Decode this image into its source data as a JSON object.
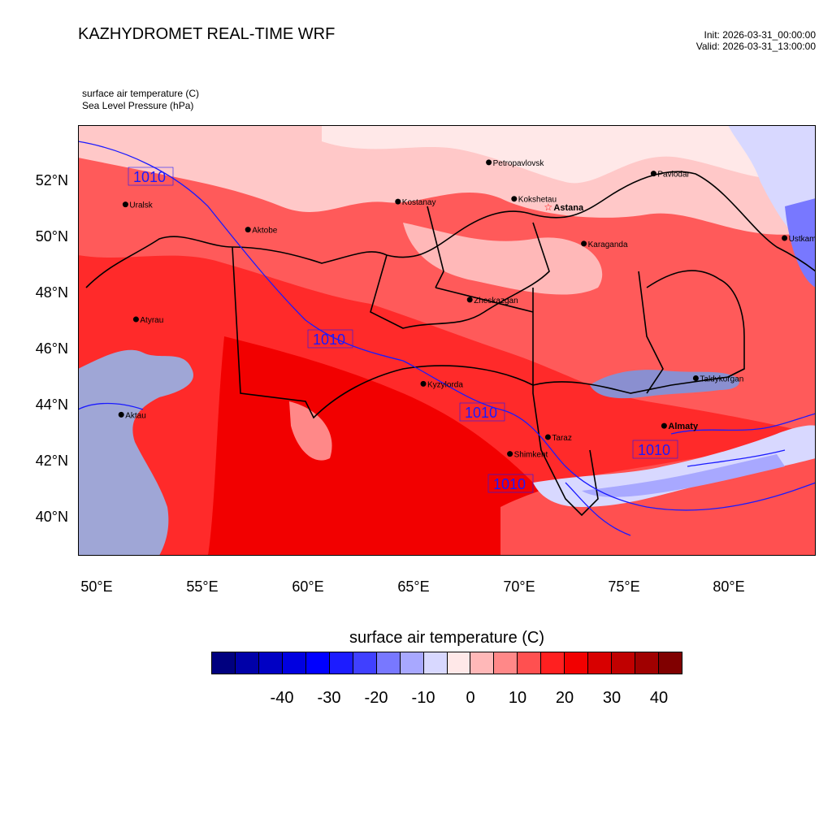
{
  "header": {
    "title": "KAZHYDROMET REAL-TIME WRF",
    "init": "Init: 2026-03-31_00:00:00",
    "valid": "Valid: 2026-03-31_13:00:00"
  },
  "fields": {
    "line1": "surface air temperature   (C)",
    "line2": "Sea Level Pressure   (hPa)"
  },
  "axes": {
    "lat_labels": [
      "52°N",
      "50°N",
      "48°N",
      "46°N",
      "44°N",
      "42°N",
      "40°N"
    ],
    "lon_labels": [
      "50°E",
      "55°E",
      "60°E",
      "65°E",
      "70°E",
      "75°E",
      "80°E"
    ]
  },
  "cities": [
    {
      "name": "Petropavlovsk",
      "lon": 68.6,
      "lat": 52.7
    },
    {
      "name": "Kostanay",
      "lon": 64.3,
      "lat": 51.3
    },
    {
      "name": "Kokshetau",
      "lon": 69.8,
      "lat": 51.4
    },
    {
      "name": "Pavlodar",
      "lon": 76.4,
      "lat": 52.3
    },
    {
      "name": "Uralsk",
      "lon": 51.4,
      "lat": 51.2
    },
    {
      "name": "Aktobe",
      "lon": 57.2,
      "lat": 50.3
    },
    {
      "name": "Astana",
      "lon": 71.4,
      "lat": 51.1
    },
    {
      "name": "Ustkamen",
      "lon": 82.6,
      "lat": 50.0
    },
    {
      "name": "Karaganda",
      "lon": 73.1,
      "lat": 49.8
    },
    {
      "name": "Atyrau",
      "lon": 51.9,
      "lat": 47.1
    },
    {
      "name": "Zheskazgan",
      "lon": 67.7,
      "lat": 47.8
    },
    {
      "name": "Taldykorgan",
      "lon": 78.4,
      "lat": 45.0
    },
    {
      "name": "Kyzylorda",
      "lon": 65.5,
      "lat": 44.8
    },
    {
      "name": "Aktau",
      "lon": 51.2,
      "lat": 43.7
    },
    {
      "name": "Almaty",
      "lon": 76.9,
      "lat": 43.3
    },
    {
      "name": "Taraz",
      "lon": 71.4,
      "lat": 42.9
    },
    {
      "name": "Shimkent",
      "lon": 69.6,
      "lat": 42.3
    }
  ],
  "isobar_labels": [
    "1010",
    "1010",
    "1010",
    "1010",
    "1010"
  ],
  "colorbar": {
    "title": "surface air temperature  (C)",
    "colors": [
      "#00007f",
      "#0000a8",
      "#0000c4",
      "#0000e0",
      "#0000ff",
      "#1c1cff",
      "#4040ff",
      "#7878ff",
      "#a8a8ff",
      "#d8d8ff",
      "#ffe8e8",
      "#ffb8b8",
      "#ff8888",
      "#ff5050",
      "#ff2020",
      "#f20000",
      "#d80000",
      "#c00000",
      "#a00000",
      "#800000"
    ],
    "labels": [
      "-40",
      "-30",
      "-20",
      "-10",
      "0",
      "10",
      "20",
      "30",
      "40"
    ]
  }
}
